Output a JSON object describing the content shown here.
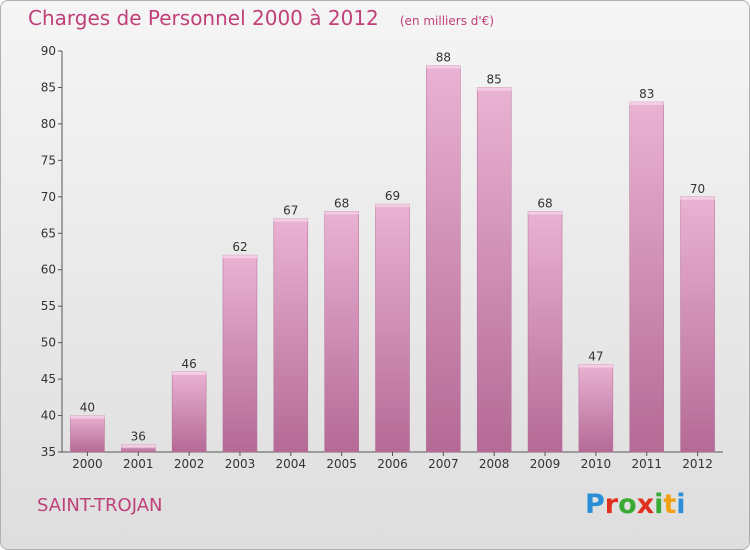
{
  "header": {
    "title": "Charges de Personnel 2000 à 2012",
    "unit": "(en milliers d'€)"
  },
  "footer": {
    "town": "SAINT-TROJAN",
    "logo": {
      "letters": [
        "P",
        "r",
        "o",
        "x",
        "i",
        "t",
        "i"
      ],
      "colors": [
        "#2a8fd6",
        "#e0301e",
        "#3aaa35",
        "#e0301e",
        "#3aaa35",
        "#f0a010",
        "#2a8fd6"
      ]
    }
  },
  "colors": {
    "bar": "#d891bb",
    "bar_light": "#eab2d3",
    "bar_dark": "#b46a95",
    "accent": "#c0407a"
  },
  "chart_data": {
    "type": "bar",
    "title": "Charges de Personnel 2000 à 2012",
    "subtitle": "(en milliers d'€)",
    "categories": [
      "2000",
      "2001",
      "2002",
      "2003",
      "2004",
      "2005",
      "2006",
      "2007",
      "2008",
      "2009",
      "2010",
      "2011",
      "2012"
    ],
    "values": [
      40,
      36,
      46,
      62,
      67,
      68,
      69,
      88,
      85,
      68,
      47,
      83,
      70
    ],
    "ylim": [
      35,
      90
    ],
    "yticks": [
      35,
      40,
      45,
      50,
      55,
      60,
      65,
      70,
      75,
      80,
      85,
      90
    ],
    "grid": false,
    "data_labels": true
  }
}
